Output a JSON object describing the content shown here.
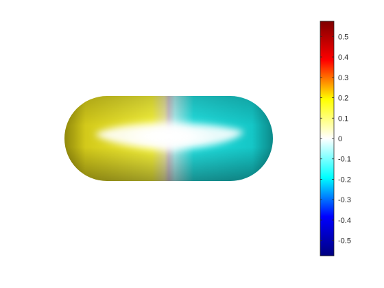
{
  "chart_data": {
    "type": "heatmap",
    "plot": "3d-surface",
    "shape": "capsule",
    "surface_color_axis": "x",
    "surface_values": [
      0.2,
      0.2,
      0.2,
      0.0,
      -0.2,
      -0.2,
      -0.2
    ],
    "colormap": [
      "#00007f",
      "#0000ff",
      "#00ffff",
      "#ffffff",
      "#ffff00",
      "#ff0000",
      "#7f0000"
    ],
    "colorbar": {
      "position": "right",
      "clim": [
        -0.575,
        0.575
      ],
      "ticks": [
        0.5,
        0.4,
        0.3,
        0.2,
        0.1,
        0,
        -0.1,
        -0.2,
        -0.3,
        -0.4,
        -0.5
      ],
      "tick_labels": [
        "0.5",
        "0.4",
        "0.3",
        "0.2",
        "0.1",
        "0",
        "-0.1",
        "-0.2",
        "-0.3",
        "-0.4",
        "-0.5"
      ]
    },
    "title": "",
    "xlabel": "",
    "ylabel": "",
    "grid": false
  }
}
